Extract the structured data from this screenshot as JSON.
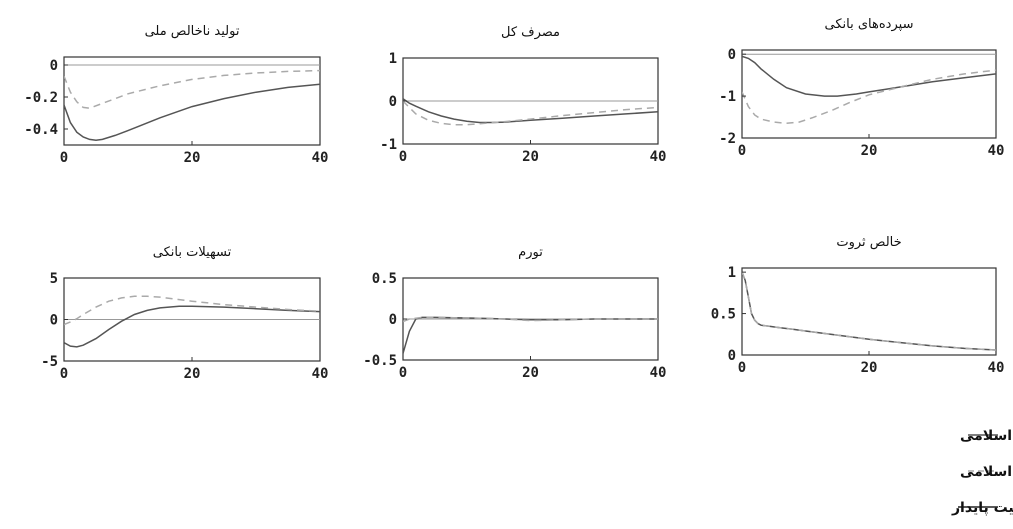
{
  "chart_data": [
    {
      "type": "line",
      "title": "تولید ناخالص ملی",
      "xlim": [
        0,
        40
      ],
      "ylim": [
        -0.5,
        0.05
      ],
      "xticks": [
        0,
        20,
        40
      ],
      "yticks": [
        0,
        -0.2,
        -0.4
      ],
      "ytick_labels": [
        "0",
        "-0.2",
        "-0.4"
      ],
      "baseline": 0,
      "series": [
        {
          "style": "solid",
          "color": "#555555",
          "x": [
            0,
            1,
            2,
            3,
            4,
            5,
            6,
            8,
            10,
            15,
            20,
            25,
            30,
            35,
            40
          ],
          "y": [
            -0.25,
            -0.36,
            -0.42,
            -0.45,
            -0.465,
            -0.47,
            -0.465,
            -0.44,
            -0.41,
            -0.33,
            -0.26,
            -0.21,
            -0.17,
            -0.14,
            -0.12
          ]
        },
        {
          "style": "dashed",
          "color": "#aaaaaa",
          "x": [
            0,
            1,
            2,
            3,
            4,
            6,
            8,
            10,
            15,
            20,
            25,
            30,
            35,
            40
          ],
          "y": [
            -0.07,
            -0.17,
            -0.23,
            -0.265,
            -0.27,
            -0.24,
            -0.21,
            -0.18,
            -0.13,
            -0.09,
            -0.065,
            -0.05,
            -0.04,
            -0.035
          ]
        }
      ]
    },
    {
      "type": "line",
      "title": "مصرف کل",
      "xlim": [
        0,
        40
      ],
      "ylim": [
        -1,
        1
      ],
      "xticks": [
        0,
        20,
        40
      ],
      "yticks": [
        1,
        0,
        -1
      ],
      "ytick_labels": [
        "1",
        "0",
        "-1"
      ],
      "baseline": 0,
      "series": [
        {
          "style": "solid",
          "color": "#555555",
          "x": [
            0,
            1,
            2,
            4,
            6,
            8,
            10,
            12,
            14,
            16,
            20,
            25,
            30,
            35,
            40
          ],
          "y": [
            0.05,
            -0.05,
            -0.12,
            -0.25,
            -0.35,
            -0.42,
            -0.47,
            -0.5,
            -0.5,
            -0.49,
            -0.45,
            -0.4,
            -0.35,
            -0.3,
            -0.25
          ]
        },
        {
          "style": "dashed",
          "color": "#aaaaaa",
          "x": [
            0,
            1,
            2,
            4,
            6,
            8,
            10,
            12,
            16,
            20,
            25,
            30,
            35,
            40
          ],
          "y": [
            0,
            -0.15,
            -0.3,
            -0.45,
            -0.52,
            -0.55,
            -0.55,
            -0.53,
            -0.48,
            -0.42,
            -0.34,
            -0.27,
            -0.2,
            -0.15
          ]
        }
      ]
    },
    {
      "type": "line",
      "title": "سپرده‌های بانکی",
      "xlim": [
        0,
        40
      ],
      "ylim": [
        -2,
        0.1
      ],
      "xticks": [
        0,
        20,
        40
      ],
      "yticks": [
        0,
        -1,
        -2
      ],
      "ytick_labels": [
        "0",
        "-1",
        "-2"
      ],
      "baseline": 0,
      "series": [
        {
          "style": "solid",
          "color": "#555555",
          "x": [
            0,
            1,
            2,
            3,
            5,
            7,
            10,
            13,
            15,
            18,
            20,
            25,
            30,
            35,
            40
          ],
          "y": [
            -0.05,
            -0.1,
            -0.2,
            -0.35,
            -0.6,
            -0.8,
            -0.95,
            -1.0,
            -1.0,
            -0.95,
            -0.9,
            -0.78,
            -0.66,
            -0.56,
            -0.47
          ]
        },
        {
          "style": "dashed",
          "color": "#aaaaaa",
          "x": [
            0,
            1,
            2,
            3,
            5,
            7,
            9,
            11,
            14,
            17,
            20,
            25,
            30,
            35,
            40
          ],
          "y": [
            -0.9,
            -1.25,
            -1.45,
            -1.55,
            -1.62,
            -1.65,
            -1.62,
            -1.52,
            -1.35,
            -1.15,
            -0.97,
            -0.78,
            -0.6,
            -0.47,
            -0.38
          ]
        }
      ]
    },
    {
      "type": "line",
      "title": "تسهیلات بانکی",
      "xlim": [
        0,
        40
      ],
      "ylim": [
        -5,
        5
      ],
      "xticks": [
        0,
        20,
        40
      ],
      "yticks": [
        5,
        0,
        -5
      ],
      "ytick_labels": [
        "5",
        "0",
        "-5"
      ],
      "baseline": 0,
      "series": [
        {
          "style": "solid",
          "color": "#555555",
          "x": [
            0,
            1,
            2,
            3,
            5,
            7,
            9,
            11,
            13,
            15,
            18,
            20,
            25,
            30,
            35,
            40
          ],
          "y": [
            -2.8,
            -3.2,
            -3.3,
            -3.1,
            -2.3,
            -1.2,
            -0.2,
            0.6,
            1.1,
            1.4,
            1.6,
            1.6,
            1.5,
            1.3,
            1.1,
            0.95
          ]
        },
        {
          "style": "dashed",
          "color": "#aaaaaa",
          "x": [
            0,
            1,
            2,
            3,
            5,
            7,
            9,
            11,
            13,
            15,
            18,
            20,
            25,
            30,
            35,
            40
          ],
          "y": [
            -0.6,
            -0.3,
            0.1,
            0.6,
            1.5,
            2.2,
            2.6,
            2.8,
            2.8,
            2.7,
            2.4,
            2.2,
            1.8,
            1.5,
            1.2,
            1.0
          ]
        }
      ]
    },
    {
      "type": "line",
      "title": "تورم",
      "xlim": [
        0,
        40
      ],
      "ylim": [
        -0.5,
        0.5
      ],
      "xticks": [
        0,
        20,
        40
      ],
      "yticks": [
        0.5,
        0,
        -0.5
      ],
      "ytick_labels": [
        "0.5",
        "0",
        "-0.5"
      ],
      "baseline": 0,
      "series": [
        {
          "style": "solid",
          "color": "#555555",
          "x": [
            0,
            1,
            2,
            3,
            5,
            8,
            12,
            16,
            20,
            25,
            30,
            35,
            40
          ],
          "y": [
            -0.42,
            -0.15,
            0.0,
            0.02,
            0.02,
            0.015,
            0.01,
            0.0,
            -0.01,
            -0.01,
            0.0,
            0.0,
            0.0
          ]
        },
        {
          "style": "dashed",
          "color": "#aaaaaa",
          "x": [
            0,
            1,
            2,
            3,
            5,
            8,
            12,
            16,
            20,
            25,
            30,
            35,
            40
          ],
          "y": [
            -0.03,
            0.0,
            0.01,
            0.02,
            0.02,
            0.015,
            0.01,
            0.0,
            -0.02,
            -0.01,
            0.0,
            0.0,
            0.0
          ]
        }
      ]
    },
    {
      "type": "line",
      "title": "خالص ثروت",
      "xlim": [
        0,
        40
      ],
      "ylim": [
        0,
        1.05
      ],
      "xticks": [
        0,
        20,
        40
      ],
      "yticks": [
        1,
        0.5,
        0
      ],
      "ytick_labels": [
        "1",
        "0.5",
        "0"
      ],
      "baseline": null,
      "series": [
        {
          "style": "solid",
          "color": "#555555",
          "x": [
            0,
            0.5,
            1,
            1.5,
            2,
            2.5,
            3,
            4,
            6,
            8,
            10,
            15,
            20,
            25,
            30,
            35,
            40
          ],
          "y": [
            1.0,
            0.9,
            0.7,
            0.5,
            0.42,
            0.38,
            0.36,
            0.35,
            0.33,
            0.31,
            0.29,
            0.24,
            0.19,
            0.15,
            0.11,
            0.08,
            0.06
          ]
        },
        {
          "style": "dashed",
          "color": "#aaaaaa",
          "x": [
            0,
            0.5,
            1,
            1.5,
            2,
            2.5,
            3,
            4,
            6,
            8,
            10,
            15,
            20,
            25,
            30,
            35,
            40
          ],
          "y": [
            1.0,
            0.9,
            0.7,
            0.5,
            0.42,
            0.38,
            0.36,
            0.35,
            0.33,
            0.31,
            0.29,
            0.24,
            0.19,
            0.15,
            0.11,
            0.08,
            0.06
          ]
        }
      ]
    }
  ],
  "legend": [
    {
      "style": "solid",
      "label": "مدل با لحاظ ابزارهای مالی اسلامی"
    },
    {
      "style": "dashed",
      "label": "مدل بدون لحاظ ابزارهای مالی اسلامی"
    },
    {
      "style": "steady",
      "label": "وضعیت پایدار"
    }
  ]
}
